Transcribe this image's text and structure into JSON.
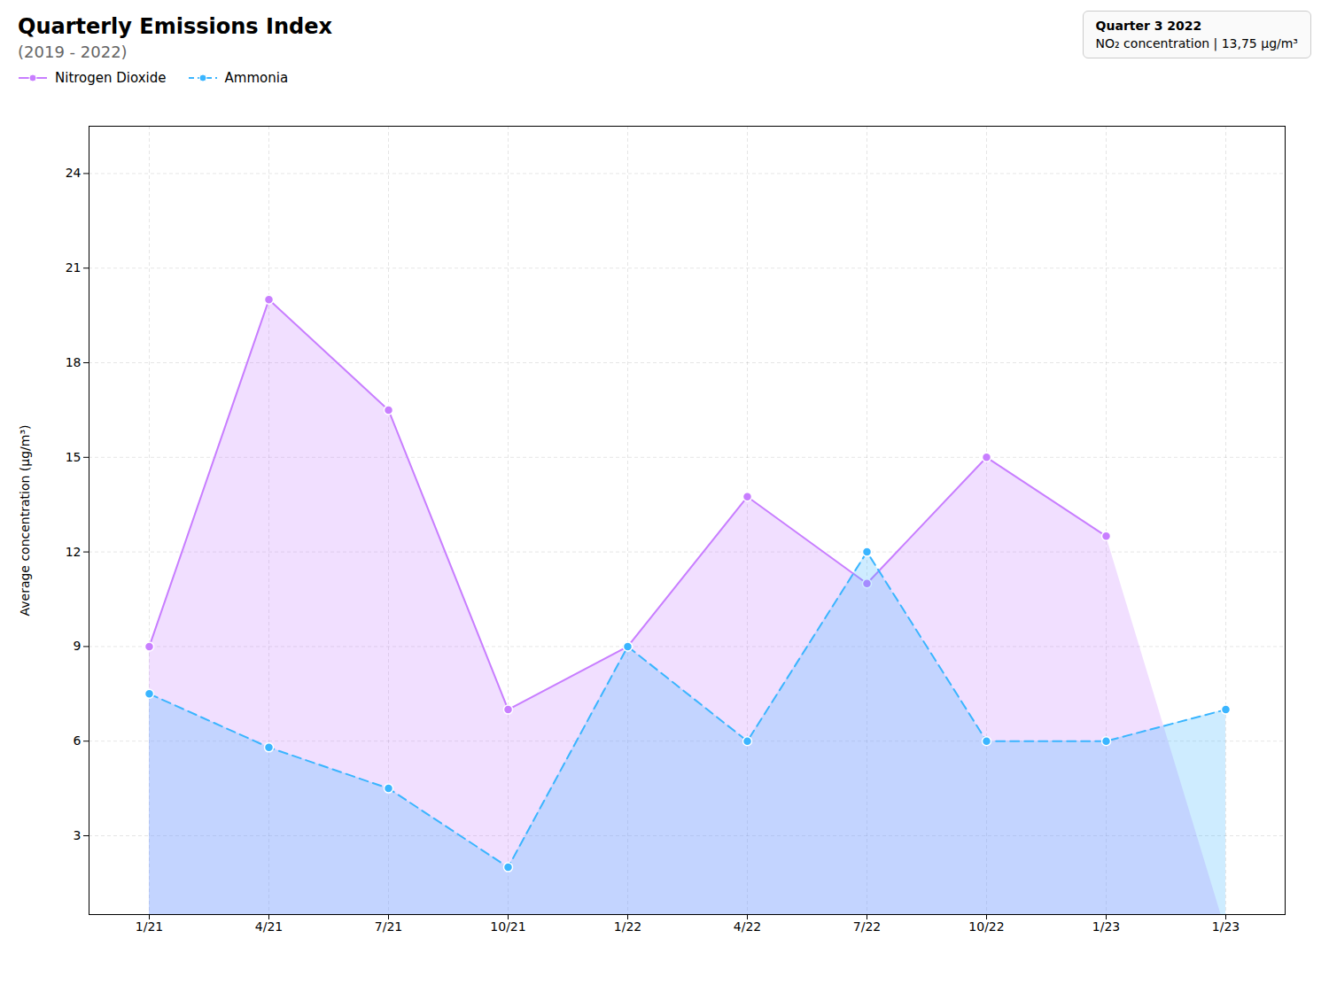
{
  "chart_data": {
    "type": "area",
    "title": "Quarterly Emissions Index",
    "subtitle": "(2019 - 2022)",
    "ylabel": "Average concentration (μg/m³)",
    "categories": [
      "1/21",
      "4/21",
      "7/21",
      "10/21",
      "1/22",
      "4/22",
      "7/22",
      "10/22",
      "1/23",
      "1/23"
    ],
    "series": [
      {
        "name": "Nitrogen Dioxide",
        "color": "#c87eff",
        "line_style": "solid",
        "marker": "circle",
        "values": [
          9.0,
          20.0,
          16.5,
          7.0,
          9.0,
          13.75,
          11.0,
          15.0,
          12.5,
          null
        ]
      },
      {
        "name": "Ammonia",
        "color": "#3ab5ff",
        "line_style": "dashed",
        "marker": "circle",
        "values": [
          7.5,
          5.8,
          4.5,
          2.0,
          9.0,
          6.0,
          12.0,
          6.0,
          6.0,
          7.0
        ]
      }
    ],
    "ylim": [
      0.5,
      25.5
    ],
    "yticks": [
      3,
      6,
      9,
      12,
      15,
      18,
      21,
      24
    ],
    "grid": true,
    "legend": "top",
    "annotations": [
      {
        "text": "Quarter 3 2022"
      },
      {
        "text": "NO₂ concentration | 13,75 μg/m³"
      }
    ]
  }
}
